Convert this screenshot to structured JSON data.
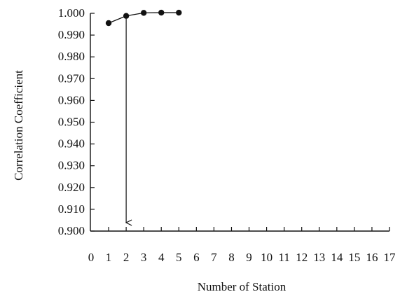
{
  "chart_data": {
    "type": "line",
    "title": "",
    "xlabel": "Number of Station",
    "ylabel": "Correlation Coefficient",
    "x_ticks": [
      "0",
      "1",
      "2",
      "3",
      "4",
      "5",
      "6",
      "7",
      "8",
      "9",
      "10",
      "11",
      "12",
      "13",
      "14",
      "15",
      "16",
      "17"
    ],
    "y_ticks": [
      "0.900",
      "0.910",
      "0.920",
      "0.930",
      "0.940",
      "0.950",
      "0.960",
      "0.970",
      "0.980",
      "0.990",
      "1.000"
    ],
    "xlim": [
      0,
      17
    ],
    "ylim": [
      0.9,
      1.0
    ],
    "grid": false,
    "series": [
      {
        "x": [
          1,
          2,
          3,
          4,
          5
        ],
        "y": [
          0.9955,
          0.9988,
          1.0002,
          1.0003,
          1.0003
        ]
      }
    ],
    "annotations": [
      {
        "type": "arrow",
        "x": 2,
        "from_y": 0.9988,
        "to_y": 0.9
      }
    ]
  },
  "colors": {
    "ink": "#111111"
  }
}
